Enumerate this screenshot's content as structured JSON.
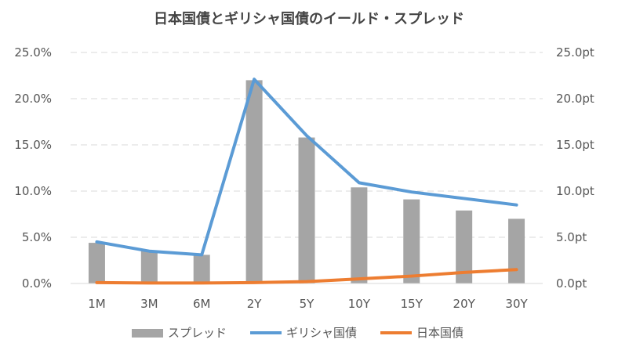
{
  "chart_data": {
    "type": "bar+line",
    "title": "日本国債とギリシャ国債のイールド・スプレッド",
    "categories": [
      "1M",
      "3M",
      "6M",
      "2Y",
      "5Y",
      "10Y",
      "15Y",
      "20Y",
      "30Y"
    ],
    "left_axis": {
      "ylim": [
        0,
        25
      ],
      "ticks": [
        0,
        5,
        10,
        15,
        20,
        25
      ],
      "tick_labels": [
        "0.0%",
        "5.0%",
        "10.0%",
        "15.0%",
        "20.0%",
        "25.0%"
      ]
    },
    "right_axis": {
      "ylim": [
        0,
        25
      ],
      "ticks": [
        0,
        5,
        10,
        15,
        20,
        25
      ],
      "tick_labels": [
        "0.0pt",
        "5.0pt",
        "10.0pt",
        "15.0pt",
        "20.0pt",
        "25.0pt"
      ]
    },
    "grid": true,
    "legend_position": "bottom",
    "series": [
      {
        "name": "スプレッド",
        "kind": "bar",
        "axis": "right",
        "color": "#a5a5a5",
        "values": [
          4.4,
          3.5,
          3.1,
          22.0,
          15.8,
          10.4,
          9.1,
          7.9,
          7.0
        ]
      },
      {
        "name": "ギリシャ国債",
        "kind": "line",
        "axis": "left",
        "color": "#5b9bd5",
        "values": [
          4.5,
          3.5,
          3.1,
          22.1,
          16.0,
          10.9,
          9.9,
          9.2,
          8.5
        ]
      },
      {
        "name": "日本国債",
        "kind": "line",
        "axis": "left",
        "color": "#ed7d31",
        "values": [
          0.1,
          0.05,
          0.05,
          0.1,
          0.2,
          0.5,
          0.8,
          1.2,
          1.5
        ]
      }
    ]
  }
}
